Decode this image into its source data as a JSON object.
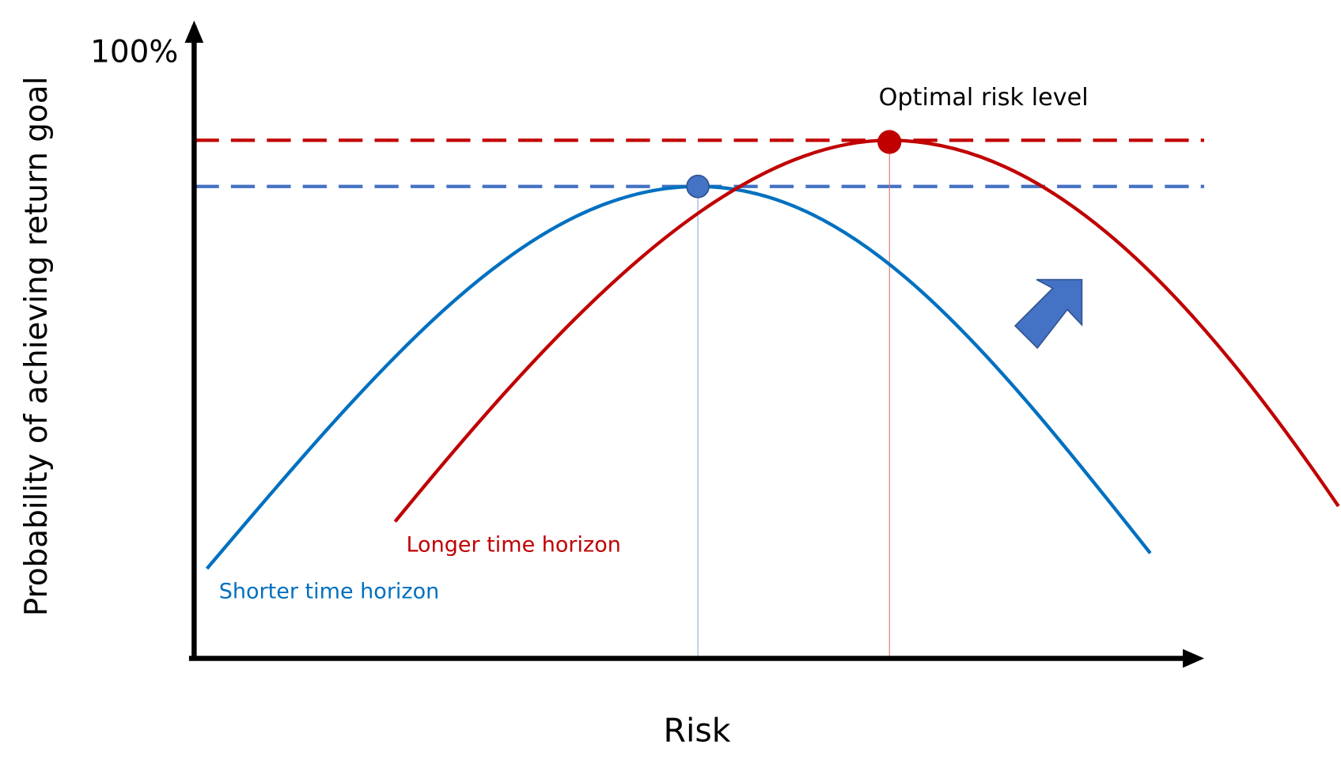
{
  "y_axis_label": "Probability of achieving return goal",
  "y_axis_top_label": "100%",
  "x_axis_label": "Risk",
  "annotation": "Optimal risk level",
  "curves": [
    {
      "label": "Shorter time horizon"
    },
    {
      "label": "Longer time horizon"
    }
  ]
}
